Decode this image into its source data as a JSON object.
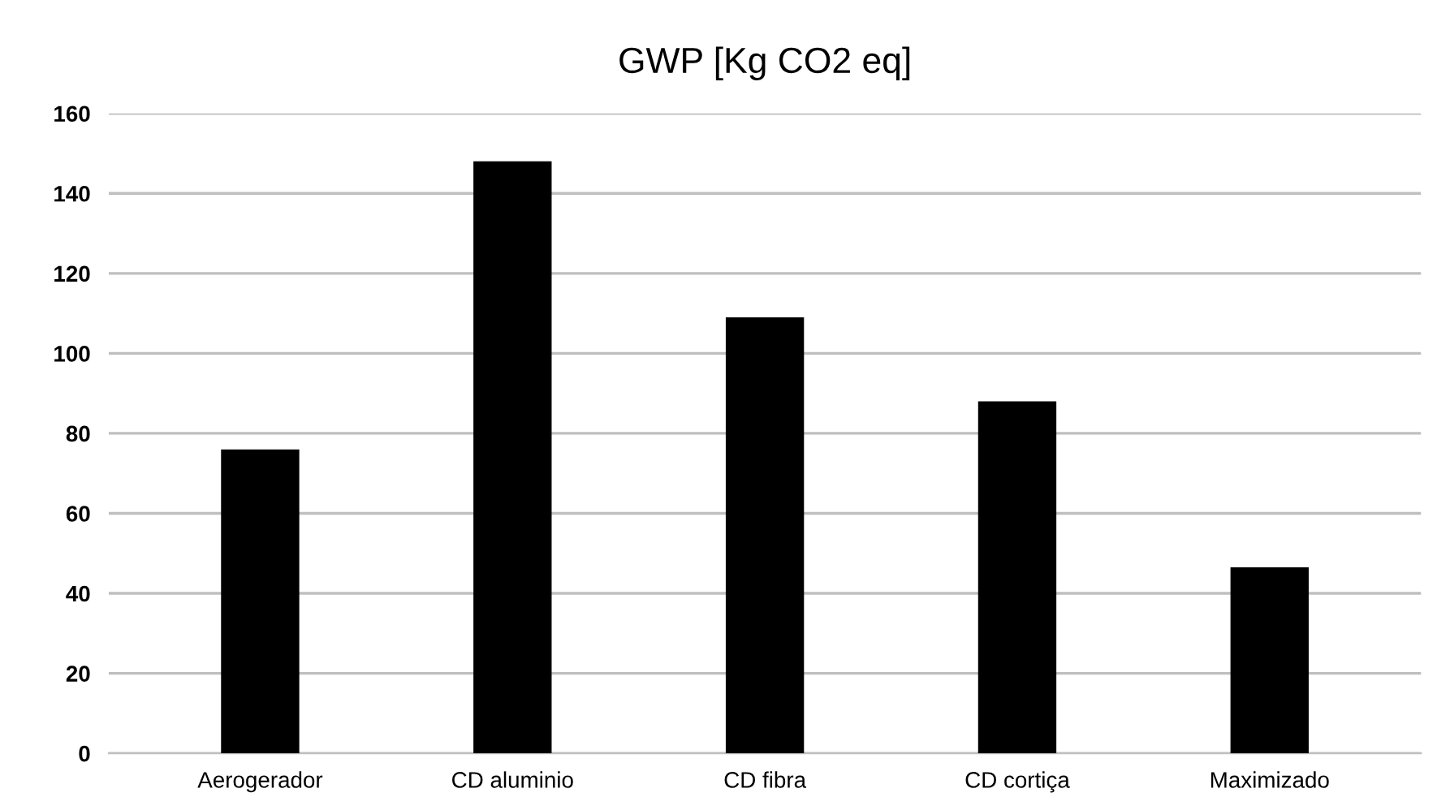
{
  "chart_data": {
    "type": "bar",
    "title": "GWP [Kg CO2 eq]",
    "categories": [
      "Aerogerador",
      "CD aluminio",
      "CD fibra",
      "CD cortiça",
      "Maximizado"
    ],
    "values": [
      76,
      148,
      109,
      88,
      46.5
    ],
    "color": "#000000",
    "ylim": [
      0,
      160
    ],
    "yticks": [
      0,
      20,
      40,
      60,
      80,
      100,
      120,
      140,
      160
    ],
    "grid": "y"
  }
}
